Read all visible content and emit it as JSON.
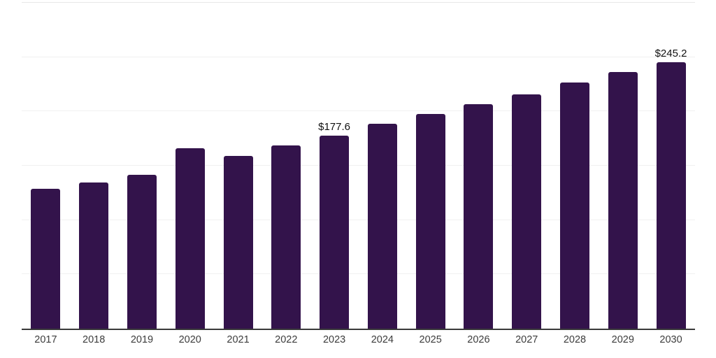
{
  "chart_data": {
    "type": "bar",
    "title": "",
    "xlabel": "",
    "ylabel": "",
    "categories": [
      "2017",
      "2018",
      "2019",
      "2020",
      "2021",
      "2022",
      "2023",
      "2024",
      "2025",
      "2026",
      "2027",
      "2028",
      "2029",
      "2030"
    ],
    "values": [
      128.5,
      134.3,
      141.9,
      166.3,
      159.2,
      168.9,
      177.6,
      188.6,
      197.7,
      206.7,
      215.7,
      226.6,
      236.3,
      245.2
    ],
    "point_labels": [
      "",
      "",
      "",
      "",
      "",
      "",
      "$177.6",
      "",
      "",
      "",
      "",
      "",
      "",
      "$245.2"
    ],
    "ylim": [
      0,
      300
    ],
    "gridline_step": 50,
    "grid": "horizontal",
    "legend": "none",
    "bar_color": "#33134b",
    "axis_color": "#3a3a3a",
    "gridline_color": "#f0f0f0",
    "tick_label_color": "#3c3c3c",
    "data_label_color": "#111111"
  }
}
